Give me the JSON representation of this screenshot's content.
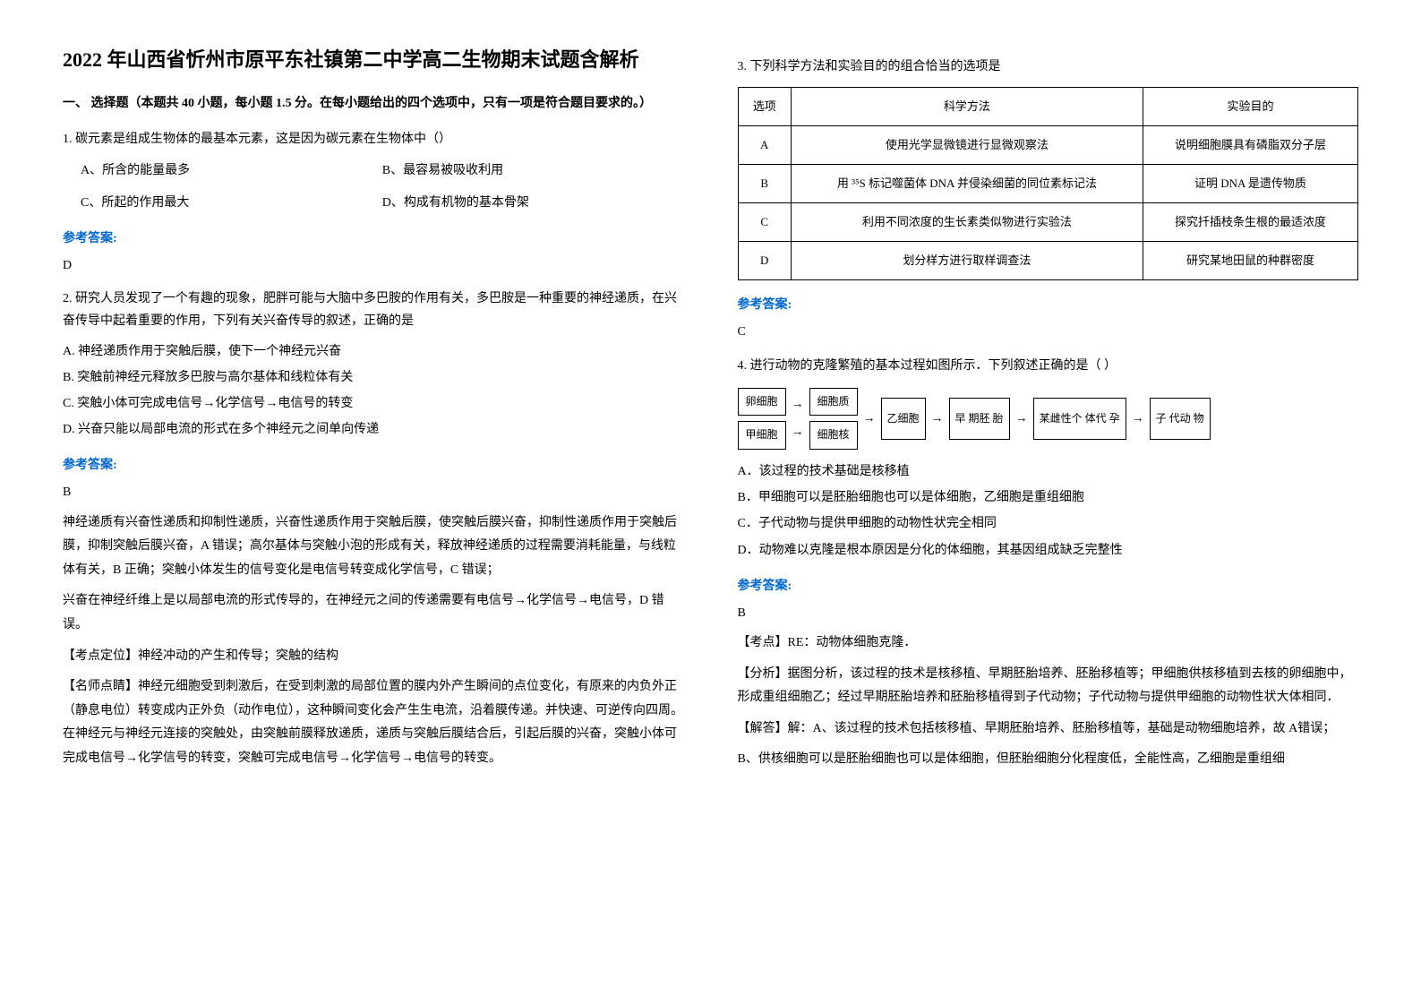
{
  "left": {
    "title": "2022 年山西省忻州市原平东社镇第二中学高二生物期末试题含解析",
    "section1": "一、 选择题（本题共 40 小题，每小题 1.5 分。在每小题给出的四个选项中，只有一项是符合题目要求的。）",
    "q1": {
      "text": "1. 碳元素是组成生物体的最基本元素，这是因为碳元素在生物体中（）",
      "optA": "A、所含的能量最多",
      "optB": "B、最容易被吸收利用",
      "optC": "C、所起的作用最大",
      "optD": "D、构成有机物的基本骨架"
    },
    "answer_label": "参考答案:",
    "q1_ans": "D",
    "q2": {
      "text": "2. 研究人员发现了一个有趣的现象，肥胖可能与大脑中多巴胺的作用有关，多巴胺是一种重要的神经递质，在兴奋传导中起着重要的作用，下列有关兴奋传导的叙述，正确的是",
      "optA": "A. 神经递质作用于突触后膜，使下一个神经元兴奋",
      "optB": "B. 突触前神经元释放多巴胺与高尔基体和线粒体有关",
      "optC": "C. 突触小体可完成电信号→化学信号→电信号的转变",
      "optD": "D. 兴奋只能以局部电流的形式在多个神经元之间单向传递"
    },
    "q2_ans": "B",
    "q2_explain1": "神经递质有兴奋性递质和抑制性递质，兴奋性递质作用于突触后膜，使突触后膜兴奋，抑制性递质作用于突触后膜，抑制突触后膜兴奋，A 错误；高尔基体与突触小泡的形成有关，释放神经递质的过程需要消耗能量，与线粒体有关，B 正确；突触小体发生的信号变化是电信号转变成化学信号，C 错误；",
    "q2_explain2": "兴奋在神经纤维上是以局部电流的形式传导的，在神经元之间的传递需要有电信号→化学信号→电信号，D 错误。",
    "q2_point": "【考点定位】神经冲动的产生和传导；突触的结构",
    "q2_tip": "【名师点睛】神经元细胞受到刺激后，在受到刺激的局部位置的膜内外产生瞬间的点位变化，有原来的内负外正（静息电位）转变成内正外负（动作电位），这种瞬间变化会产生生电流，沿着膜传递。并快速、可逆传向四周。在神经元与神经元连接的突触处，由突触前膜释放递质，递质与突触后膜结合后，引起后膜的兴奋，突触小体可完成电信号→化学信号的转变，突触可完成电信号→化学信号→电信号的转变。"
  },
  "right": {
    "q3_text": "3. 下列科学方法和实验目的的组合恰当的选项是",
    "table": {
      "header": [
        "选项",
        "科学方法",
        "实验目的"
      ],
      "rows": [
        [
          "A",
          "使用光学显微镜进行显微观察法",
          "说明细胞膜具有磷脂双分子层"
        ],
        [
          "B",
          "用 ³⁵S 标记噬菌体 DNA 并侵染细菌的同位素标记法",
          "证明 DNA 是遗传物质"
        ],
        [
          "C",
          "利用不同浓度的生长素类似物进行实验法",
          "探究扦插枝条生根的最适浓度"
        ],
        [
          "D",
          "划分样方进行取样调查法",
          "研究某地田鼠的种群密度"
        ]
      ]
    },
    "answer_label": "参考答案:",
    "q3_ans": "C",
    "q4_text": "4. 进行动物的克隆繁殖的基本过程如图所示．下列叙述正确的是（    ）",
    "flow": {
      "r1c1": "卵细胞",
      "r2c1": "甲细胞",
      "r1c2": "细胞质",
      "r2c2": "细胞核",
      "c3": "乙细胞",
      "c4": "早 期胚 胎",
      "c5": "某雌性个 体代 孕",
      "c6": "子 代动 物"
    },
    "q4_optA": "A．该过程的技术基础是核移植",
    "q4_optB": "B．甲细胞可以是胚胎细胞也可以是体细胞，乙细胞是重组细胞",
    "q4_optC": "C．子代动物与提供甲细胞的动物性状完全相同",
    "q4_optD": "D．动物难以克隆是根本原因是分化的体细胞，其基因组成缺乏完整性",
    "q4_ans": "B",
    "q4_point": "【考点】RE：动物体细胞克隆．",
    "q4_analysis": "【分析】据图分析，该过程的技术是核移植、早期胚胎培养、胚胎移植等；甲细胞供核移植到去核的卵细胞中，形成重组细胞乙；经过早期胚胎培养和胚胎移植得到子代动物；子代动物与提供甲细胞的动物性状大体相同．",
    "q4_solve1": "【解答】解：A、该过程的技术包括核移植、早期胚胎培养、胚胎移植等，基础是动物细胞培养，故 A错误；",
    "q4_solve2": "B、供核细胞可以是胚胎细胞也可以是体细胞，但胚胎细胞分化程度低，全能性高，乙细胞是重组细"
  }
}
